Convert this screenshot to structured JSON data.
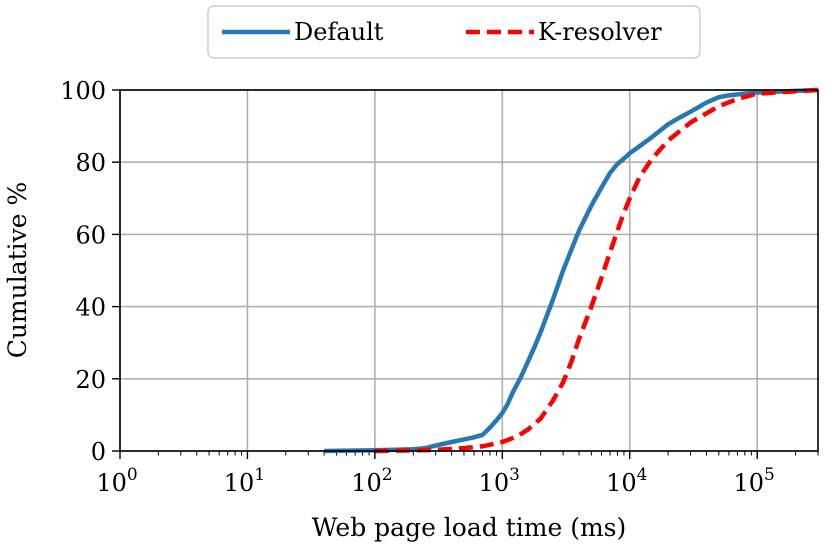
{
  "chart_data": {
    "type": "line",
    "xlabel": "Web page load time (ms)",
    "ylabel": "Cumulative %",
    "xscale": "log",
    "xlim": [
      1,
      300000
    ],
    "ylim": [
      0,
      100
    ],
    "grid": true,
    "legend_position": "top-center",
    "x_ticks": [
      {
        "value": 1,
        "base": "10",
        "exp": "0"
      },
      {
        "value": 10,
        "base": "10",
        "exp": "1"
      },
      {
        "value": 100,
        "base": "10",
        "exp": "2"
      },
      {
        "value": 1000,
        "base": "10",
        "exp": "3"
      },
      {
        "value": 10000,
        "base": "10",
        "exp": "4"
      },
      {
        "value": 100000,
        "base": "10",
        "exp": "5"
      }
    ],
    "y_ticks": [
      0,
      20,
      40,
      60,
      80,
      100
    ],
    "series": [
      {
        "name": "Default",
        "color": "#2878b5",
        "style": "solid",
        "x": [
          40,
          100,
          200,
          250,
          300,
          400,
          500,
          600,
          700,
          800,
          900,
          1000,
          1100,
          1200,
          1400,
          1600,
          1800,
          2000,
          2500,
          3000,
          3500,
          4000,
          5000,
          6000,
          7000,
          8000,
          9000,
          10000,
          12000,
          15000,
          20000,
          25000,
          30000,
          40000,
          50000,
          60000,
          80000,
          100000,
          300000
        ],
        "y": [
          0,
          0.2,
          0.5,
          0.8,
          1.5,
          2.5,
          3.2,
          3.8,
          4.5,
          6.5,
          8.5,
          10.5,
          13,
          16,
          20.5,
          25,
          29,
          33,
          42,
          50,
          56,
          61,
          68,
          73,
          77,
          79.5,
          81,
          82.5,
          84.5,
          87,
          90.5,
          92.5,
          94,
          96.5,
          98,
          98.5,
          99,
          99.3,
          100
        ]
      },
      {
        "name": "K-resolver",
        "color": "#ff0000",
        "style": "dashed",
        "x": [
          100,
          300,
          500,
          700,
          1000,
          1300,
          1600,
          2000,
          2500,
          3000,
          3500,
          4000,
          5000,
          6000,
          7000,
          8000,
          9000,
          10000,
          12000,
          15000,
          20000,
          30000,
          50000,
          70000,
          100000,
          300000
        ],
        "y": [
          0,
          0.3,
          0.8,
          1.3,
          2.5,
          4,
          6,
          9,
          14,
          19,
          25,
          31,
          40,
          48,
          55,
          61,
          66,
          70,
          76,
          81,
          86,
          91,
          95.5,
          97.5,
          99,
          100
        ]
      }
    ]
  }
}
